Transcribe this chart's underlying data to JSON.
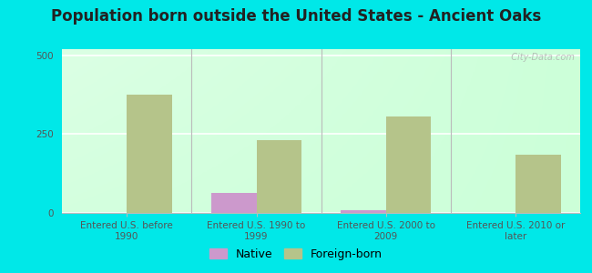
{
  "title": "Population born outside the United States - Ancient Oaks",
  "categories": [
    "Entered U.S. before\n1990",
    "Entered U.S. 1990 to\n1999",
    "Entered U.S. 2000 to\n2009",
    "Entered U.S. 2010 or\nlater"
  ],
  "native_values": [
    0,
    65,
    10,
    0
  ],
  "foreign_values": [
    375,
    230,
    305,
    185
  ],
  "native_color": "#cc99cc",
  "foreign_color": "#b5c48a",
  "background_color": "#00e8e8",
  "ylim": [
    0,
    520
  ],
  "yticks": [
    0,
    250,
    500
  ],
  "bar_width": 0.35,
  "title_fontsize": 12,
  "tick_fontsize": 7.5,
  "legend_fontsize": 9,
  "watermark_text": "  City-Data.com"
}
